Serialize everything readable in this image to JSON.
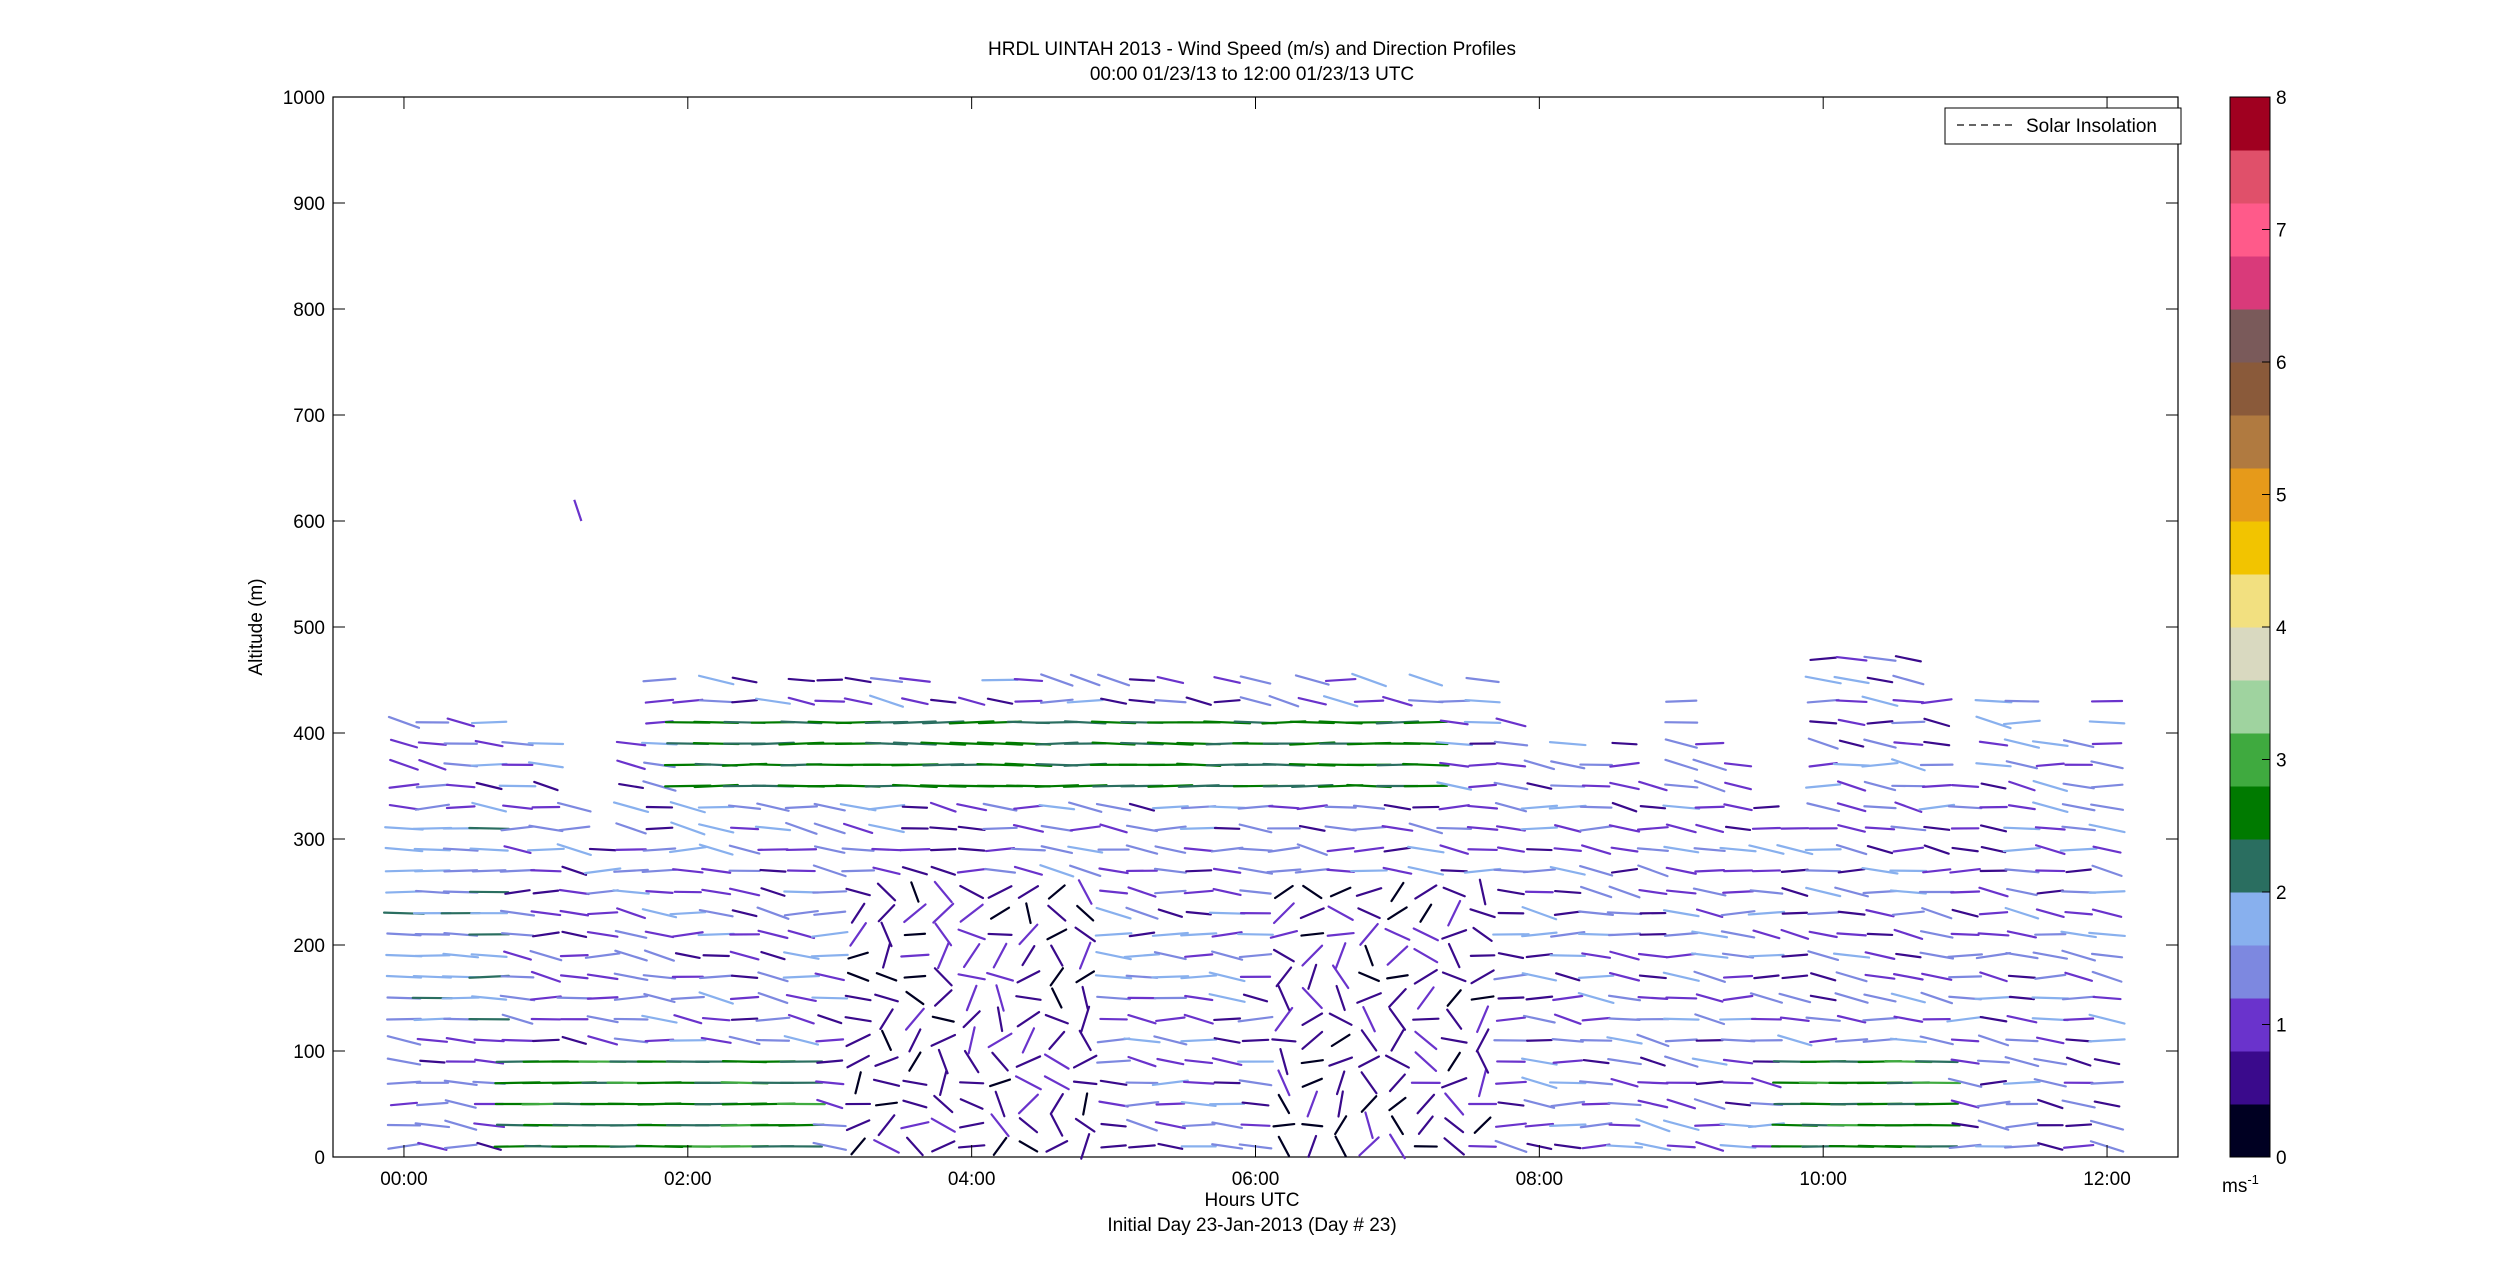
{
  "chart_data": {
    "type": "quiver",
    "title": "HRDL UINTAH 2013 - Wind Speed (m/s) and Direction Profiles",
    "subtitle": "00:00 01/23/13 to 12:00 01/23/13  UTC",
    "xlabel": "Hours UTC",
    "xlabel2": "Initial Day 23-Jan-2013 (Day # 23)",
    "ylabel": "Altitude (m)",
    "xlim": [
      -0.5,
      12.5
    ],
    "ylim": [
      0,
      1000
    ],
    "x_ticks": [
      0,
      2,
      4,
      6,
      8,
      10,
      12
    ],
    "x_tick_labels": [
      "00:00",
      "02:00",
      "04:00",
      "06:00",
      "08:00",
      "10:00",
      "12:00"
    ],
    "y_ticks": [
      0,
      100,
      200,
      300,
      400,
      500,
      600,
      700,
      800,
      900,
      1000
    ],
    "legend": {
      "entries": [
        "Solar Insolation"
      ],
      "location": "top-right",
      "line_style": "dashed"
    },
    "colorbar": {
      "unit": "ms",
      "unit_superscript": "-1",
      "range": [
        0,
        8
      ],
      "ticks": [
        0,
        1,
        2,
        3,
        4,
        5,
        6,
        7,
        8
      ],
      "colors": [
        "#000022",
        "#3a0a8c",
        "#6a33cc",
        "#7d88e0",
        "#88b0ee",
        "#2a6e60",
        "#007a00",
        "#3faa3f",
        "#9fd39f",
        "#d9d9c0",
        "#f2e080",
        "#f2c400",
        "#e69a1a",
        "#b07a40",
        "#8a5a3a",
        "#7a5a5a",
        "#d93a7a",
        "#ff5a8a",
        "#e0506a",
        "#a00020"
      ]
    },
    "columns_hours": [
      0.0,
      0.2,
      0.4,
      0.6,
      0.8,
      1.0,
      1.2,
      1.4,
      1.6,
      1.8,
      2.0,
      2.2,
      2.4,
      2.6,
      2.8,
      3.0,
      3.2,
      3.4,
      3.6,
      3.8,
      4.0,
      4.2,
      4.4,
      4.6,
      4.8,
      5.0,
      5.2,
      5.4,
      5.6,
      5.8,
      6.0,
      6.2,
      6.4,
      6.6,
      6.8,
      7.0,
      7.2,
      7.4,
      7.6,
      7.8,
      8.0,
      8.2,
      8.4,
      8.6,
      8.8,
      9.0,
      9.2,
      9.4,
      9.6,
      9.8,
      10.0,
      10.2,
      10.4,
      10.6,
      10.8,
      11.0,
      11.2,
      11.4,
      11.6,
      11.8,
      12.0
    ],
    "altitude_levels_m": [
      10,
      30,
      50,
      70,
      90,
      110,
      130,
      150,
      170,
      190,
      210,
      230,
      250,
      270,
      290,
      310,
      330,
      350,
      370,
      390,
      410,
      430,
      450,
      470
    ],
    "note_data": "Wind barbs at ~0.2 h intervals from ~10 m to ~480 m altitude; speeds mostly 0-3 m/s; lower ~100 m green (2-3 m/s) near 01:00-03:00 and 09:30-11:00; green band ~350-420 m between 02:00 and 07:00; isolated point near 620 m at ~01:10."
  }
}
